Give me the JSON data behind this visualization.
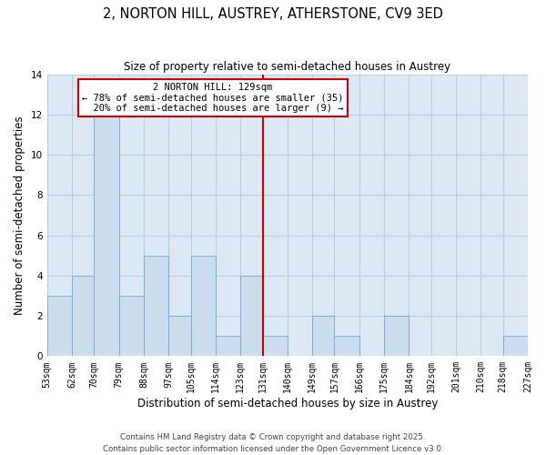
{
  "title": "2, NORTON HILL, AUSTREY, ATHERSTONE, CV9 3ED",
  "subtitle": "Size of property relative to semi-detached houses in Austrey",
  "xlabel": "Distribution of semi-detached houses by size in Austrey",
  "ylabel": "Number of semi-detached properties",
  "bins": [
    53,
    62,
    70,
    79,
    88,
    97,
    105,
    114,
    123,
    131,
    140,
    149,
    157,
    166,
    175,
    184,
    192,
    201,
    210,
    218,
    227
  ],
  "counts": [
    3,
    4,
    12,
    3,
    5,
    2,
    5,
    1,
    4,
    1,
    0,
    2,
    1,
    0,
    2,
    0,
    0,
    0,
    0,
    1
  ],
  "bar_color": "#ccddf0",
  "bar_edge_color": "#7aafd4",
  "reference_line_x": 131,
  "reference_line_color": "#cc0000",
  "annotation_text": "2 NORTON HILL: 129sqm\n← 78% of semi-detached houses are smaller (35)\n  20% of semi-detached houses are larger (9) →",
  "annotation_box_color": "#ffffff",
  "annotation_box_edge_color": "#cc0000",
  "ylim": [
    0,
    14
  ],
  "yticks": [
    0,
    2,
    4,
    6,
    8,
    10,
    12,
    14
  ],
  "tick_labels": [
    "53sqm",
    "62sqm",
    "70sqm",
    "79sqm",
    "88sqm",
    "97sqm",
    "105sqm",
    "114sqm",
    "123sqm",
    "131sqm",
    "140sqm",
    "149sqm",
    "157sqm",
    "166sqm",
    "175sqm",
    "184sqm",
    "192sqm",
    "201sqm",
    "210sqm",
    "218sqm",
    "227sqm"
  ],
  "footer_line1": "Contains HM Land Registry data © Crown copyright and database right 2025.",
  "footer_line2": "Contains public sector information licensed under the Open Government Licence v3.0.",
  "background_color": "#ffffff",
  "plot_bg_color": "#dce9f5",
  "grid_color": "#b8cce4",
  "title_fontsize": 10.5,
  "subtitle_fontsize": 8.5,
  "axis_label_fontsize": 8.5,
  "tick_fontsize": 7,
  "annotation_fontsize": 7.5,
  "footer_fontsize": 6.2
}
